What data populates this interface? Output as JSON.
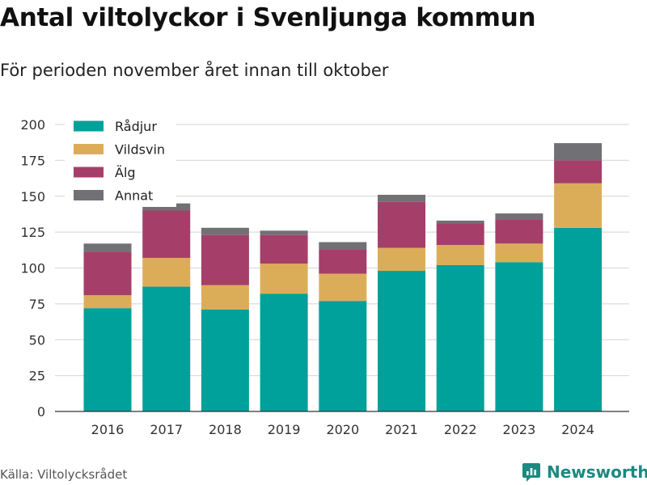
{
  "title": "Antal viltolyckor i Svenljunga kommun",
  "subtitle": "För perioden november året innan till oktober",
  "source": "Källa: Viltolycksrådet",
  "brand": {
    "name": "Newsworthy",
    "color": "#1b8a80"
  },
  "chart_data": {
    "type": "bar",
    "stacked": true,
    "categories": [
      "2016",
      "2017",
      "2018",
      "2019",
      "2020",
      "2021",
      "2022",
      "2023",
      "2024"
    ],
    "series": [
      {
        "name": "Rådjur",
        "color": "#00a19a",
        "values": [
          72,
          87,
          71,
          82,
          77,
          98,
          102,
          104,
          128
        ]
      },
      {
        "name": "Vildsvin",
        "color": "#dcad58",
        "values": [
          9,
          20,
          17,
          21,
          19,
          16,
          14,
          13,
          31
        ]
      },
      {
        "name": "Älg",
        "color": "#a53f69",
        "values": [
          30,
          33,
          35,
          20,
          17,
          32,
          15,
          17,
          16
        ]
      },
      {
        "name": "Annat",
        "color": "#717075",
        "values": [
          6,
          5,
          5,
          3,
          5,
          5,
          2,
          4,
          12
        ]
      }
    ],
    "ylim": [
      0,
      200
    ],
    "yticks": [
      0,
      25,
      50,
      75,
      100,
      125,
      150,
      175,
      200
    ],
    "grid": true,
    "legend_position": "top-left"
  }
}
